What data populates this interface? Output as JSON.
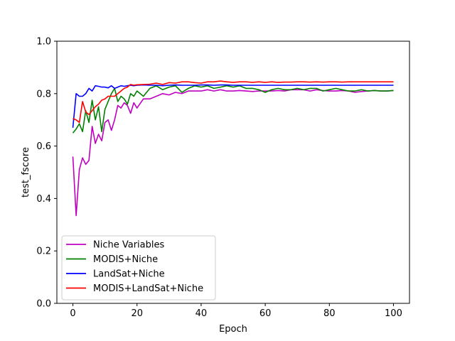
{
  "chart_data": {
    "type": "line",
    "xlabel": "Epoch",
    "ylabel": "test_fscore",
    "xlim": [
      -5,
      105
    ],
    "ylim": [
      0.0,
      1.0
    ],
    "xticks": [
      0,
      20,
      40,
      60,
      80,
      100
    ],
    "yticks": [
      0.0,
      0.2,
      0.4,
      0.6,
      0.8,
      1.0
    ],
    "xtick_labels": [
      "0",
      "20",
      "40",
      "60",
      "80",
      "100"
    ],
    "ytick_labels": [
      "0.0",
      "0.2",
      "0.4",
      "0.6",
      "0.8",
      "1.0"
    ],
    "legend_position": "lower-left",
    "grid": false,
    "series": [
      {
        "name": "Niche Variables",
        "color": "#bf00bf",
        "x": [
          0,
          1,
          2,
          3,
          4,
          5,
          6,
          7,
          8,
          9,
          10,
          11,
          12,
          13,
          14,
          15,
          16,
          17,
          18,
          19,
          20,
          22,
          24,
          26,
          28,
          30,
          32,
          34,
          36,
          38,
          40,
          42,
          44,
          46,
          48,
          50,
          52,
          54,
          56,
          58,
          60,
          62,
          64,
          66,
          68,
          70,
          72,
          74,
          76,
          78,
          80,
          82,
          84,
          86,
          88,
          90,
          92,
          94,
          96,
          98,
          100
        ],
        "values": [
          0.56,
          0.335,
          0.51,
          0.555,
          0.53,
          0.545,
          0.675,
          0.61,
          0.645,
          0.62,
          0.69,
          0.7,
          0.66,
          0.7,
          0.755,
          0.745,
          0.765,
          0.755,
          0.725,
          0.765,
          0.745,
          0.78,
          0.78,
          0.79,
          0.8,
          0.795,
          0.805,
          0.8,
          0.81,
          0.81,
          0.81,
          0.815,
          0.81,
          0.815,
          0.81,
          0.81,
          0.812,
          0.81,
          0.808,
          0.81,
          0.81,
          0.81,
          0.812,
          0.81,
          0.815,
          0.815,
          0.815,
          0.81,
          0.815,
          0.812,
          0.81,
          0.81,
          0.812,
          0.81,
          0.805,
          0.808,
          0.81,
          0.812,
          0.81,
          0.81,
          0.812
        ]
      },
      {
        "name": "MODIS+Niche",
        "color": "#008000",
        "x": [
          0,
          1,
          2,
          3,
          4,
          5,
          6,
          7,
          8,
          9,
          10,
          11,
          12,
          13,
          14,
          15,
          16,
          17,
          18,
          19,
          20,
          22,
          24,
          26,
          28,
          30,
          32,
          34,
          36,
          38,
          40,
          42,
          44,
          46,
          48,
          50,
          52,
          54,
          56,
          58,
          60,
          62,
          64,
          66,
          68,
          70,
          72,
          74,
          76,
          78,
          80,
          82,
          84,
          86,
          88,
          90,
          92,
          94,
          96,
          98,
          100
        ],
        "values": [
          0.65,
          0.665,
          0.685,
          0.655,
          0.735,
          0.69,
          0.775,
          0.7,
          0.75,
          0.655,
          0.74,
          0.77,
          0.8,
          0.82,
          0.77,
          0.79,
          0.78,
          0.76,
          0.8,
          0.79,
          0.81,
          0.79,
          0.82,
          0.83,
          0.815,
          0.825,
          0.83,
          0.805,
          0.82,
          0.83,
          0.825,
          0.83,
          0.82,
          0.825,
          0.83,
          0.825,
          0.83,
          0.82,
          0.82,
          0.815,
          0.805,
          0.815,
          0.82,
          0.815,
          0.815,
          0.82,
          0.815,
          0.82,
          0.82,
          0.81,
          0.815,
          0.82,
          0.815,
          0.81,
          0.81,
          0.815,
          0.81,
          0.812,
          0.81,
          0.81,
          0.812
        ]
      },
      {
        "name": "LandSat+Niche",
        "color": "#0000ff",
        "x": [
          0,
          1,
          2,
          3,
          4,
          5,
          6,
          7,
          8,
          9,
          10,
          11,
          12,
          13,
          14,
          15,
          16,
          17,
          18,
          19,
          20,
          22,
          24,
          26,
          28,
          30,
          32,
          34,
          36,
          38,
          40,
          42,
          44,
          46,
          48,
          50,
          52,
          54,
          56,
          58,
          60,
          62,
          64,
          66,
          68,
          70,
          72,
          74,
          76,
          78,
          80,
          82,
          84,
          86,
          88,
          90,
          92,
          94,
          96,
          98,
          100
        ],
        "values": [
          0.67,
          0.8,
          0.79,
          0.79,
          0.8,
          0.82,
          0.81,
          0.83,
          0.828,
          0.825,
          0.825,
          0.822,
          0.83,
          0.82,
          0.825,
          0.83,
          0.828,
          0.83,
          0.832,
          0.83,
          0.832,
          0.833,
          0.832,
          0.832,
          0.83,
          0.832,
          0.833,
          0.832,
          0.832,
          0.832,
          0.833,
          0.833,
          0.832,
          0.833,
          0.833,
          0.832,
          0.832,
          0.832,
          0.832,
          0.832,
          0.832,
          0.832,
          0.832,
          0.832,
          0.832,
          0.832,
          0.832,
          0.832,
          0.832,
          0.832,
          0.832,
          0.832,
          0.832,
          0.832,
          0.832,
          0.832,
          0.832,
          0.832,
          0.832,
          0.832,
          0.832
        ]
      },
      {
        "name": "MODIS+LandSat+Niche",
        "color": "#ff0000",
        "x": [
          0,
          1,
          2,
          3,
          4,
          5,
          6,
          7,
          8,
          9,
          10,
          11,
          12,
          13,
          14,
          15,
          16,
          17,
          18,
          19,
          20,
          22,
          24,
          26,
          28,
          30,
          32,
          34,
          36,
          38,
          40,
          42,
          44,
          46,
          48,
          50,
          52,
          54,
          56,
          58,
          60,
          62,
          64,
          66,
          68,
          70,
          72,
          74,
          76,
          78,
          80,
          82,
          84,
          86,
          88,
          90,
          92,
          94,
          96,
          98,
          100
        ],
        "values": [
          0.705,
          0.7,
          0.69,
          0.77,
          0.73,
          0.72,
          0.735,
          0.75,
          0.76,
          0.775,
          0.78,
          0.79,
          0.79,
          0.79,
          0.8,
          0.81,
          0.82,
          0.825,
          0.835,
          0.832,
          0.834,
          0.835,
          0.836,
          0.84,
          0.835,
          0.842,
          0.84,
          0.845,
          0.845,
          0.842,
          0.84,
          0.845,
          0.845,
          0.848,
          0.845,
          0.843,
          0.845,
          0.845,
          0.843,
          0.845,
          0.843,
          0.845,
          0.843,
          0.844,
          0.844,
          0.845,
          0.845,
          0.844,
          0.845,
          0.844,
          0.845,
          0.845,
          0.844,
          0.845,
          0.845,
          0.845,
          0.845,
          0.845,
          0.845,
          0.845,
          0.845
        ]
      }
    ]
  }
}
